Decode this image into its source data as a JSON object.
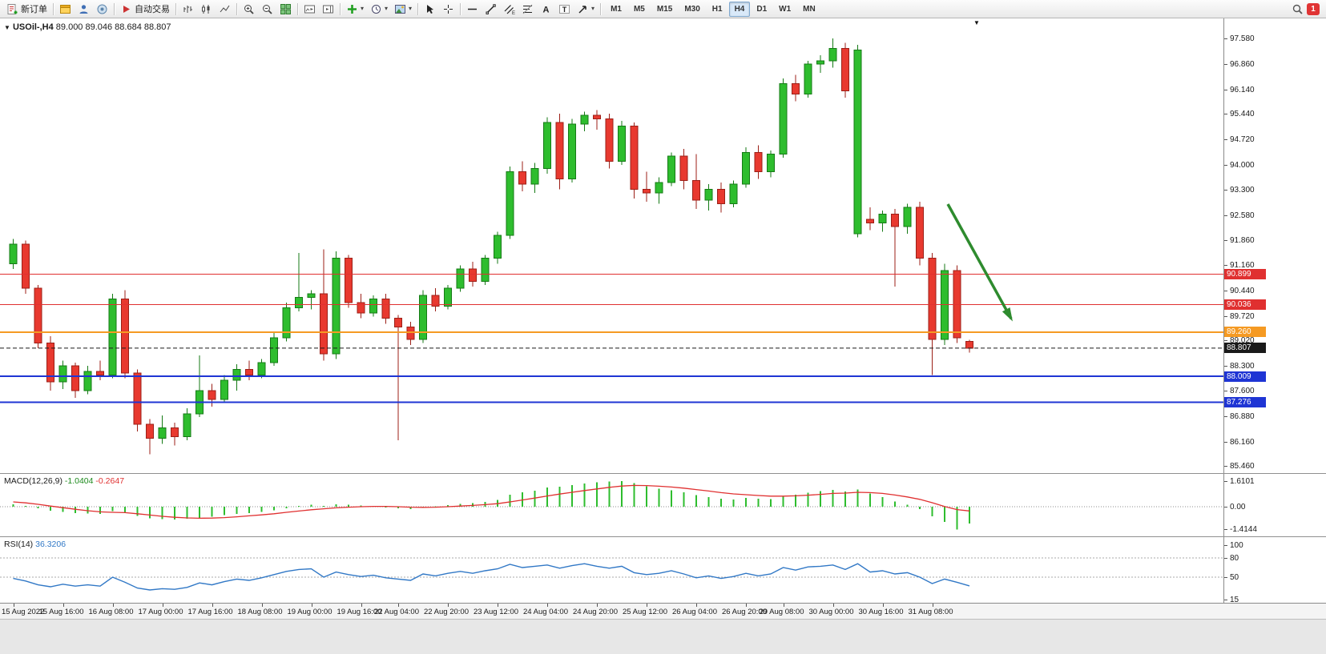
{
  "toolbar": {
    "new_order_label": "新订单",
    "auto_trading_label": "自动交易",
    "timeframes": [
      "M1",
      "M5",
      "M15",
      "M30",
      "H1",
      "H4",
      "D1",
      "W1",
      "MN"
    ],
    "active_timeframe": "H4",
    "notification_count": "1"
  },
  "icons": {
    "caret": "▾",
    "collapse": "▼",
    "shift_marker": "▼",
    "text_tool": "A",
    "label_tool": "T",
    "channel_suffix": "E"
  },
  "chart_header": {
    "symbol": "USOil-,H4",
    "quote": "89.000 89.046 88.684 88.807"
  },
  "colors": {
    "bull": "#2ebd2e",
    "bull_border": "#157a15",
    "bear": "#e8392f",
    "bear_border": "#9c1f17",
    "macd_hist": "#2ebd2e",
    "macd_signal": "#e03030",
    "rsi_line": "#3178c6",
    "line_red": "#e03030",
    "line_orange": "#f59a23",
    "line_blue": "#1f35d4",
    "current_price": "#1a1a1a",
    "arrow_green": "#2e8b2e"
  },
  "chart_data": {
    "type": "candlestick",
    "symbol": "USOil-",
    "timeframe": "H4",
    "ylim": [
      85.46,
      97.58
    ],
    "y_ticks": [
      "97.580",
      "96.860",
      "96.140",
      "95.440",
      "94.720",
      "94.000",
      "93.300",
      "92.580",
      "91.860",
      "91.160",
      "90.440",
      "89.720",
      "89.020",
      "88.300",
      "87.600",
      "86.880",
      "86.160",
      "85.460"
    ],
    "x_ticks": [
      {
        "label": "15 Aug 2022",
        "i": 0
      },
      {
        "label": "15 Aug 16:00",
        "i": 4
      },
      {
        "label": "16 Aug 08:00",
        "i": 8
      },
      {
        "label": "17 Aug 00:00",
        "i": 12
      },
      {
        "label": "17 Aug 16:00",
        "i": 16
      },
      {
        "label": "18 Aug 08:00",
        "i": 20
      },
      {
        "label": "19 Aug 00:00",
        "i": 24
      },
      {
        "label": "19 Aug 16:00",
        "i": 28
      },
      {
        "label": "22 Aug 04:00",
        "i": 31
      },
      {
        "label": "22 Aug 20:00",
        "i": 35
      },
      {
        "label": "23 Aug 12:00",
        "i": 39
      },
      {
        "label": "24 Aug 04:00",
        "i": 43
      },
      {
        "label": "24 Aug 20:00",
        "i": 47
      },
      {
        "label": "25 Aug 12:00",
        "i": 51
      },
      {
        "label": "26 Aug 04:00",
        "i": 55
      },
      {
        "label": "26 Aug 20:00",
        "i": 59
      },
      {
        "label": "29 Aug 08:00",
        "i": 62
      },
      {
        "label": "30 Aug 00:00",
        "i": 66
      },
      {
        "label": "30 Aug 16:00",
        "i": 70
      },
      {
        "label": "31 Aug 08:00",
        "i": 74
      }
    ],
    "ohlc": [
      [
        91.2,
        91.9,
        91.05,
        91.75
      ],
      [
        91.75,
        91.85,
        90.35,
        90.5
      ],
      [
        90.5,
        90.6,
        88.8,
        88.95
      ],
      [
        88.95,
        89.15,
        87.6,
        87.85
      ],
      [
        87.85,
        88.45,
        87.65,
        88.3
      ],
      [
        88.3,
        88.4,
        87.4,
        87.6
      ],
      [
        87.6,
        88.3,
        87.5,
        88.15
      ],
      [
        88.15,
        88.45,
        87.9,
        88.05
      ],
      [
        88.05,
        90.35,
        87.95,
        90.2
      ],
      [
        90.2,
        90.45,
        87.95,
        88.1
      ],
      [
        88.1,
        88.2,
        86.45,
        86.65
      ],
      [
        86.65,
        86.8,
        85.8,
        86.25
      ],
      [
        86.25,
        86.9,
        86.1,
        86.55
      ],
      [
        86.55,
        86.7,
        86.05,
        86.3
      ],
      [
        86.3,
        87.1,
        86.2,
        86.95
      ],
      [
        86.95,
        88.6,
        86.85,
        87.6
      ],
      [
        87.6,
        87.8,
        87.15,
        87.35
      ],
      [
        87.35,
        88.05,
        87.25,
        87.9
      ],
      [
        87.9,
        88.35,
        87.6,
        88.2
      ],
      [
        88.2,
        88.45,
        87.9,
        88.05
      ],
      [
        88.05,
        88.5,
        87.95,
        88.4
      ],
      [
        88.4,
        89.25,
        88.3,
        89.1
      ],
      [
        89.1,
        90.1,
        89.0,
        89.95
      ],
      [
        89.95,
        91.5,
        89.85,
        90.25
      ],
      [
        90.25,
        90.45,
        89.9,
        90.35
      ],
      [
        90.35,
        91.6,
        88.45,
        88.65
      ],
      [
        88.65,
        91.55,
        88.5,
        91.35
      ],
      [
        91.35,
        91.45,
        89.95,
        90.1
      ],
      [
        90.1,
        90.35,
        89.65,
        89.8
      ],
      [
        89.8,
        90.3,
        89.7,
        90.2
      ],
      [
        90.2,
        90.35,
        89.5,
        89.65
      ],
      [
        89.65,
        89.75,
        86.2,
        89.4
      ],
      [
        89.4,
        89.55,
        88.9,
        89.05
      ],
      [
        89.05,
        90.45,
        88.95,
        90.3
      ],
      [
        90.3,
        90.5,
        89.85,
        90.0
      ],
      [
        90.0,
        90.6,
        89.9,
        90.5
      ],
      [
        90.5,
        91.15,
        90.4,
        91.05
      ],
      [
        91.05,
        91.25,
        90.55,
        90.7
      ],
      [
        90.7,
        91.45,
        90.6,
        91.35
      ],
      [
        91.35,
        92.1,
        91.2,
        92.0
      ],
      [
        92.0,
        93.95,
        91.9,
        93.8
      ],
      [
        93.8,
        94.1,
        93.25,
        93.45
      ],
      [
        93.45,
        94.05,
        93.2,
        93.9
      ],
      [
        93.9,
        95.35,
        93.75,
        95.2
      ],
      [
        95.2,
        95.45,
        93.3,
        93.6
      ],
      [
        93.6,
        95.3,
        93.5,
        95.15
      ],
      [
        95.15,
        95.5,
        94.95,
        95.4
      ],
      [
        95.4,
        95.55,
        95.0,
        95.3
      ],
      [
        95.3,
        95.45,
        93.9,
        94.1
      ],
      [
        94.1,
        95.25,
        94.0,
        95.1
      ],
      [
        95.1,
        95.2,
        93.05,
        93.3
      ],
      [
        93.3,
        93.8,
        92.95,
        93.2
      ],
      [
        93.2,
        93.65,
        92.9,
        93.5
      ],
      [
        93.5,
        94.35,
        93.4,
        94.25
      ],
      [
        94.25,
        94.45,
        93.3,
        93.55
      ],
      [
        93.55,
        94.3,
        92.75,
        93.0
      ],
      [
        93.0,
        93.45,
        92.7,
        93.3
      ],
      [
        93.3,
        93.5,
        92.65,
        92.9
      ],
      [
        92.9,
        93.55,
        92.8,
        93.45
      ],
      [
        93.45,
        94.5,
        93.35,
        94.35
      ],
      [
        94.35,
        94.55,
        93.6,
        93.8
      ],
      [
        93.8,
        94.4,
        93.65,
        94.3
      ],
      [
        94.3,
        96.45,
        94.2,
        96.3
      ],
      [
        96.3,
        96.55,
        95.8,
        96.0
      ],
      [
        96.0,
        96.95,
        95.9,
        96.85
      ],
      [
        96.85,
        97.1,
        96.6,
        96.95
      ],
      [
        96.95,
        97.58,
        96.75,
        97.3
      ],
      [
        97.3,
        97.45,
        95.9,
        96.1
      ],
      [
        92.05,
        97.4,
        91.95,
        97.25
      ],
      [
        92.45,
        92.8,
        92.15,
        92.35
      ],
      [
        92.35,
        92.7,
        92.1,
        92.6
      ],
      [
        92.6,
        92.75,
        90.55,
        92.25
      ],
      [
        92.25,
        92.9,
        92.05,
        92.8
      ],
      [
        92.8,
        92.95,
        91.15,
        91.35
      ],
      [
        91.35,
        91.5,
        88.05,
        89.05
      ],
      [
        89.05,
        91.2,
        88.9,
        91.0
      ],
      [
        91.0,
        91.15,
        88.95,
        89.1
      ],
      [
        89.0,
        89.046,
        88.684,
        88.807
      ]
    ],
    "hlines": [
      {
        "label": "90.899",
        "price": 90.899,
        "color": "line_red",
        "width": 1
      },
      {
        "label": "90.036",
        "price": 90.036,
        "color": "line_red",
        "width": 1
      },
      {
        "label": "89.260",
        "price": 89.26,
        "color": "line_orange",
        "width": 2
      },
      {
        "label": "88.009",
        "price": 88.009,
        "color": "line_blue",
        "width": 2
      },
      {
        "label": "87.276",
        "price": 87.276,
        "color": "line_blue",
        "width": 2
      }
    ],
    "current_price": {
      "label": "88.807",
      "price": 88.807
    },
    "arrow_annotation": {
      "description": "green arrow pointing down-right toward the orange level",
      "color": "arrow_green"
    },
    "macd": {
      "title": "MACD(12,26,9)",
      "main_value": "-1.0404",
      "signal_value": "-0.2647",
      "axis": [
        "1.6101",
        "0.00",
        "-1.4144"
      ],
      "ylim": [
        -1.4144,
        1.6101
      ],
      "histogram": [
        0.15,
        0.05,
        -0.1,
        -0.25,
        -0.32,
        -0.4,
        -0.42,
        -0.45,
        -0.28,
        -0.35,
        -0.58,
        -0.72,
        -0.78,
        -0.8,
        -0.75,
        -0.7,
        -0.62,
        -0.52,
        -0.45,
        -0.4,
        -0.32,
        -0.22,
        -0.1,
        0.04,
        0.12,
        0.05,
        0.15,
        0.12,
        0.08,
        0.06,
        0.0,
        -0.1,
        -0.14,
        -0.06,
        0.02,
        0.1,
        0.18,
        0.22,
        0.3,
        0.42,
        0.75,
        0.9,
        1.0,
        1.2,
        1.25,
        1.35,
        1.45,
        1.52,
        1.58,
        1.6101,
        1.48,
        1.28,
        1.12,
        1.02,
        0.9,
        0.72,
        0.6,
        0.5,
        0.46,
        0.55,
        0.5,
        0.48,
        0.68,
        0.74,
        0.88,
        0.98,
        1.05,
        0.95,
        1.08,
        0.82,
        0.6,
        0.32,
        0.12,
        -0.15,
        -0.6,
        -0.95,
        -1.4144,
        -1.0404
      ],
      "signal": [
        0.3,
        0.24,
        0.15,
        0.04,
        -0.06,
        -0.16,
        -0.25,
        -0.32,
        -0.35,
        -0.37,
        -0.44,
        -0.52,
        -0.6,
        -0.66,
        -0.7,
        -0.72,
        -0.71,
        -0.68,
        -0.63,
        -0.57,
        -0.51,
        -0.44,
        -0.35,
        -0.27,
        -0.19,
        -0.13,
        -0.07,
        -0.03,
        0.0,
        0.02,
        0.02,
        0.0,
        -0.03,
        -0.04,
        -0.03,
        0.0,
        0.04,
        0.08,
        0.13,
        0.19,
        0.3,
        0.42,
        0.54,
        0.67,
        0.79,
        0.9,
        1.01,
        1.11,
        1.21,
        1.29,
        1.33,
        1.32,
        1.28,
        1.23,
        1.16,
        1.07,
        0.98,
        0.88,
        0.8,
        0.75,
        0.7,
        0.66,
        0.66,
        0.68,
        0.72,
        0.77,
        0.83,
        0.85,
        0.9,
        0.88,
        0.83,
        0.73,
        0.61,
        0.46,
        0.25,
        0.01,
        -0.18,
        -0.2647
      ]
    },
    "rsi": {
      "title": "RSI(14)",
      "value": "36.3206",
      "axis": [
        "100",
        "80",
        "50",
        "15"
      ],
      "ylim": [
        15,
        100
      ],
      "levels": [
        80,
        50
      ],
      "values": [
        48,
        44,
        38,
        35,
        39,
        36,
        38,
        36,
        50,
        42,
        33,
        30,
        32,
        31,
        34,
        41,
        38,
        43,
        47,
        45,
        49,
        54,
        59,
        62,
        63,
        50,
        58,
        54,
        51,
        53,
        49,
        47,
        45,
        55,
        52,
        56,
        59,
        56,
        60,
        63,
        70,
        65,
        67,
        69,
        64,
        68,
        71,
        67,
        64,
        67,
        57,
        54,
        56,
        60,
        55,
        49,
        52,
        48,
        51,
        56,
        52,
        55,
        65,
        61,
        66,
        67,
        69,
        62,
        71,
        58,
        60,
        55,
        57,
        50,
        40,
        47,
        42,
        36.3206
      ]
    }
  }
}
